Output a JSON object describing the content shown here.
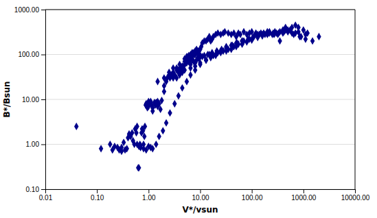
{
  "chart_data": {
    "type": "scatter",
    "xlabel": "V*/vsun",
    "ylabel": "B*/Bsun",
    "log": true,
    "grid": "y",
    "marker": "diamond",
    "color": "#00008B",
    "xlim": [
      0.01,
      10000.0
    ],
    "ylim": [
      0.1,
      1000.0
    ],
    "xticks": [
      0.01,
      {
        "value": 0.1,
        "label": "0.10"
      },
      {
        "value": 1.0,
        "label": "1.00"
      },
      {
        "value": 10.0,
        "label": "10.00"
      },
      {
        "value": 100.0,
        "label": "100.00"
      },
      {
        "value": 1000.0,
        "label": "1000.00"
      },
      {
        "value": 10000.0,
        "label": "10000.00"
      }
    ],
    "yticks": [
      {
        "value": 0.1,
        "label": "0.10"
      },
      {
        "value": 1.0,
        "label": "1.00"
      },
      {
        "value": 10.0,
        "label": "10.00"
      },
      {
        "value": 100.0,
        "label": "100.00"
      },
      {
        "value": 1000.0,
        "label": "1000.00"
      }
    ],
    "x": [
      0.04,
      0.12,
      0.18,
      0.2,
      0.22,
      0.25,
      0.27,
      0.3,
      0.3,
      0.33,
      0.35,
      0.38,
      0.4,
      0.42,
      0.45,
      0.48,
      0.5,
      0.53,
      0.55,
      0.58,
      0.6,
      0.63,
      0.65,
      0.68,
      0.7,
      0.73,
      0.75,
      0.78,
      0.8,
      0.83,
      0.85,
      0.88,
      0.9,
      0.93,
      0.95,
      0.98,
      1.0,
      1.0,
      1.05,
      1.1,
      1.15,
      1.2,
      1.2,
      1.3,
      1.35,
      1.4,
      1.5,
      1.5,
      1.6,
      1.7,
      1.8,
      2.0,
      2.0,
      2.2,
      2.3,
      2.5,
      2.6,
      2.8,
      3.0,
      3.0,
      3.2,
      3.5,
      3.5,
      3.8,
      4.0,
      4.0,
      4.2,
      4.5,
      4.5,
      4.8,
      5.0,
      5.0,
      5.3,
      5.5,
      5.5,
      5.8,
      6.0,
      6.0,
      6.3,
      6.5,
      6.5,
      6.8,
      7.0,
      7.0,
      7.3,
      7.5,
      7.5,
      7.8,
      8.0,
      8.0,
      8.3,
      8.5,
      8.8,
      9.0,
      9.2,
      9.5,
      9.8,
      10.0,
      10.5,
      11.0,
      12.0,
      13.0,
      14.0,
      15.0,
      16.0,
      17.0,
      18.0,
      20.0,
      22.0,
      25.0,
      28.0,
      30.0,
      35.0,
      40.0,
      45.0,
      50.0,
      55.0,
      60.0,
      70.0,
      80.0,
      90.0,
      100.0,
      120.0,
      130.0,
      150.0,
      180.0,
      200.0,
      220.0,
      250.0,
      280.0,
      300.0,
      350.0,
      400.0,
      450.0,
      500.0,
      600.0,
      700.0,
      800.0,
      1000.0,
      1200.0,
      1500.0,
      2000.0,
      3.0,
      4.0,
      5.0,
      6.0,
      7.0,
      8.0,
      9.0,
      10.0,
      12.0,
      15.0,
      18.0,
      22.0,
      28.0,
      35.0,
      45.0,
      55.0,
      70.0,
      90.0,
      110.0,
      140.0,
      170.0,
      220.0,
      280.0,
      350.0,
      450.0,
      600.0,
      800.0,
      1100.0,
      2.5,
      3.5,
      4.5,
      5.5,
      6.5,
      7.5,
      8.5,
      9.5,
      11.0,
      14.0,
      17.0,
      21.0,
      26.0,
      32.0,
      42.0,
      52.0,
      65.0,
      85.0,
      105.0,
      130.0,
      160.0,
      210.0,
      270.0,
      330.0,
      420.0,
      550.0,
      700.0,
      900.0,
      1.5,
      2.0,
      3.0,
      4.0,
      5.0,
      6.5,
      8.0,
      10.0,
      13.0,
      16.0,
      20.0,
      25.0,
      32.0,
      40.0,
      50.0,
      65.0,
      80.0,
      100.0,
      130.0,
      160.0,
      200.0,
      260.0,
      320.0,
      400.0,
      500.0,
      650.0,
      850.0,
      1100.0,
      0.6,
      0.65,
      0.7,
      0.8,
      0.9,
      1.0,
      1.1,
      1.2,
      1.4,
      1.6,
      1.9,
      2.2,
      2.6,
      3.2,
      3.8,
      4.5,
      5.5,
      6.5,
      8.0,
      10.0,
      13.0,
      16.0,
      20.0,
      25.0,
      32.0,
      40.0,
      50.0,
      65.0
    ],
    "values": [
      2.5,
      0.8,
      1.0,
      0.75,
      0.9,
      0.85,
      0.75,
      0.7,
      0.85,
      1.1,
      0.75,
      0.8,
      1.4,
      1.7,
      1.5,
      1.8,
      1.2,
      1.0,
      2.2,
      1.8,
      2.5,
      0.3,
      0.3,
      1.0,
      0.95,
      1.8,
      2.2,
      2.0,
      1.0,
      1.5,
      2.5,
      7.5,
      8.0,
      7.0,
      6.5,
      7.0,
      9.0,
      7.0,
      8.0,
      9.0,
      7.5,
      5.5,
      6.5,
      8.5,
      7.5,
      8.5,
      9.0,
      7.0,
      8.0,
      6.0,
      9.5,
      15.0,
      20.0,
      25.0,
      30.0,
      35.0,
      30.0,
      35.0,
      40.0,
      30.0,
      35.0,
      45.0,
      30.0,
      40.0,
      50.0,
      35.0,
      45.0,
      45.0,
      40.0,
      55.0,
      60.0,
      80.0,
      65.0,
      90.0,
      75.0,
      85.0,
      95.0,
      70.0,
      90.0,
      100.0,
      80.0,
      100.0,
      110.0,
      90.0,
      100.0,
      100.0,
      110.0,
      100.0,
      120.0,
      100.0,
      115.0,
      130.0,
      110.0,
      120.0,
      100.0,
      120.0,
      100.0,
      130.0,
      150.0,
      180.0,
      200.0,
      200.0,
      220.0,
      250.0,
      200.0,
      220.0,
      250.0,
      280.0,
      300.0,
      280.0,
      300.0,
      320.0,
      300.0,
      280.0,
      300.0,
      250.0,
      300.0,
      280.0,
      320.0,
      280.0,
      300.0,
      320.0,
      300.0,
      280.0,
      300.0,
      280.0,
      320.0,
      300.0,
      280.0,
      320.0,
      300.0,
      200.0,
      350.0,
      400.0,
      350.0,
      400.0,
      450.0,
      400.0,
      350.0,
      300.0,
      200.0,
      250.0,
      50.0,
      60.0,
      70.0,
      80.0,
      75.0,
      65.0,
      85.0,
      90.0,
      95.0,
      100.0,
      95.0,
      110.0,
      120.0,
      130.0,
      150.0,
      170.0,
      200.0,
      220.0,
      250.0,
      280.0,
      300.0,
      320.0,
      300.0,
      320.0,
      350.0,
      300.0,
      320.0,
      280.0,
      40.0,
      50.0,
      55.0,
      65.0,
      60.0,
      70.0,
      75.0,
      80.0,
      90.0,
      100.0,
      110.0,
      120.0,
      130.0,
      150.0,
      160.0,
      180.0,
      200.0,
      220.0,
      240.0,
      260.0,
      280.0,
      300.0,
      280.0,
      300.0,
      320.0,
      350.0,
      300.0,
      250.0,
      25.0,
      30.0,
      35.0,
      40.0,
      45.0,
      50.0,
      55.0,
      65.0,
      75.0,
      85.0,
      95.0,
      110.0,
      120.0,
      130.0,
      150.0,
      170.0,
      190.0,
      210.0,
      240.0,
      260.0,
      280.0,
      300.0,
      280.0,
      300.0,
      320.0,
      280.0,
      250.0,
      220.0,
      1.0,
      0.9,
      0.85,
      0.8,
      0.75,
      0.9,
      0.85,
      0.8,
      1.0,
      1.5,
      2.0,
      3.0,
      5.0,
      8.0,
      12.0,
      18.0,
      25.0,
      35.0,
      45.0,
      60.0,
      75.0,
      90.0,
      100.0,
      120.0,
      140.0,
      160.0,
      180.0,
      200.0
    ]
  }
}
